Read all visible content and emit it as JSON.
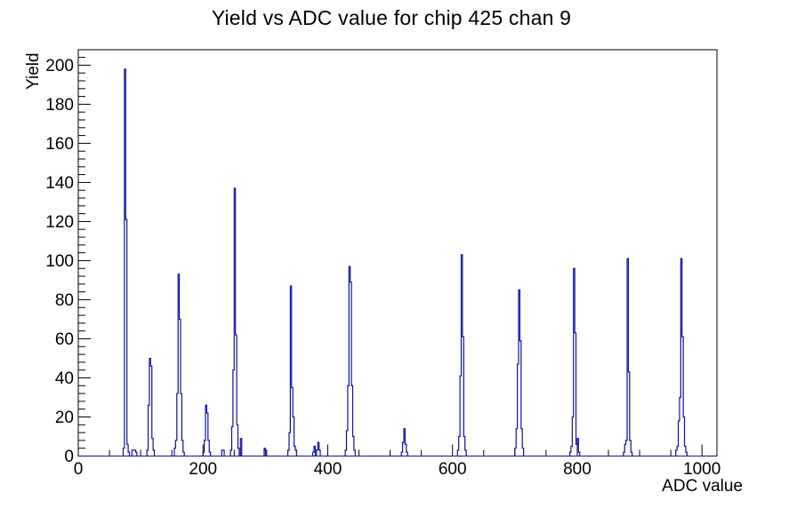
{
  "chart_data": {
    "type": "bar",
    "subtype": "histogram-step",
    "title": "Yield vs ADC value for chip 425 chan 9",
    "xlabel": "ADC value",
    "ylabel": "Yield",
    "xlim": [
      0,
      1024
    ],
    "ylim": [
      0,
      207.9
    ],
    "x_major_ticks": [
      0,
      200,
      400,
      600,
      800,
      1000
    ],
    "x_minor_step": 50,
    "y_major_ticks": [
      0,
      20,
      40,
      60,
      80,
      100,
      120,
      140,
      160,
      180,
      200
    ],
    "y_minor_step": 4,
    "grid": "off",
    "legend": "none",
    "line_color": "#10109c",
    "frame_color": "#000000",
    "background": "#ffffff",
    "bin_width": 2,
    "bins": [
      [
        72,
        4
      ],
      [
        74,
        198
      ],
      [
        76,
        121
      ],
      [
        78,
        6
      ],
      [
        80,
        2
      ],
      [
        86,
        3
      ],
      [
        88,
        3
      ],
      [
        90,
        3
      ],
      [
        92,
        2
      ],
      [
        110,
        3
      ],
      [
        112,
        26
      ],
      [
        114,
        50
      ],
      [
        116,
        46
      ],
      [
        118,
        9
      ],
      [
        120,
        3
      ],
      [
        154,
        4
      ],
      [
        156,
        8
      ],
      [
        158,
        32
      ],
      [
        160,
        93
      ],
      [
        162,
        70
      ],
      [
        164,
        32
      ],
      [
        166,
        8
      ],
      [
        168,
        2
      ],
      [
        200,
        2
      ],
      [
        202,
        8
      ],
      [
        204,
        26
      ],
      [
        206,
        22
      ],
      [
        208,
        8
      ],
      [
        210,
        2
      ],
      [
        230,
        3
      ],
      [
        232,
        3
      ],
      [
        244,
        3
      ],
      [
        246,
        15
      ],
      [
        248,
        44
      ],
      [
        250,
        137
      ],
      [
        252,
        62
      ],
      [
        254,
        16
      ],
      [
        256,
        4
      ],
      [
        260,
        9
      ],
      [
        298,
        4
      ],
      [
        300,
        3
      ],
      [
        336,
        3
      ],
      [
        338,
        12
      ],
      [
        340,
        87
      ],
      [
        342,
        35
      ],
      [
        344,
        20
      ],
      [
        346,
        5
      ],
      [
        348,
        3
      ],
      [
        376,
        2
      ],
      [
        378,
        5
      ],
      [
        382,
        3
      ],
      [
        384,
        7
      ],
      [
        386,
        3
      ],
      [
        428,
        3
      ],
      [
        430,
        13
      ],
      [
        432,
        36
      ],
      [
        434,
        97
      ],
      [
        436,
        89
      ],
      [
        438,
        36
      ],
      [
        440,
        10
      ],
      [
        442,
        3
      ],
      [
        518,
        2
      ],
      [
        520,
        7
      ],
      [
        522,
        14
      ],
      [
        524,
        6
      ],
      [
        526,
        2
      ],
      [
        608,
        3
      ],
      [
        610,
        10
      ],
      [
        612,
        41
      ],
      [
        614,
        103
      ],
      [
        616,
        61
      ],
      [
        618,
        10
      ],
      [
        620,
        3
      ],
      [
        700,
        4
      ],
      [
        702,
        14
      ],
      [
        704,
        47
      ],
      [
        706,
        85
      ],
      [
        708,
        59
      ],
      [
        710,
        14
      ],
      [
        712,
        4
      ],
      [
        788,
        2
      ],
      [
        790,
        5
      ],
      [
        792,
        20
      ],
      [
        794,
        96
      ],
      [
        796,
        63
      ],
      [
        798,
        6
      ],
      [
        800,
        9
      ],
      [
        802,
        2
      ],
      [
        874,
        2
      ],
      [
        876,
        6
      ],
      [
        878,
        8
      ],
      [
        880,
        101
      ],
      [
        882,
        43
      ],
      [
        884,
        8
      ],
      [
        886,
        2
      ],
      [
        958,
        3
      ],
      [
        960,
        5
      ],
      [
        962,
        18
      ],
      [
        964,
        30
      ],
      [
        966,
        101
      ],
      [
        968,
        61
      ],
      [
        970,
        20
      ],
      [
        972,
        5
      ],
      [
        974,
        2
      ]
    ]
  }
}
